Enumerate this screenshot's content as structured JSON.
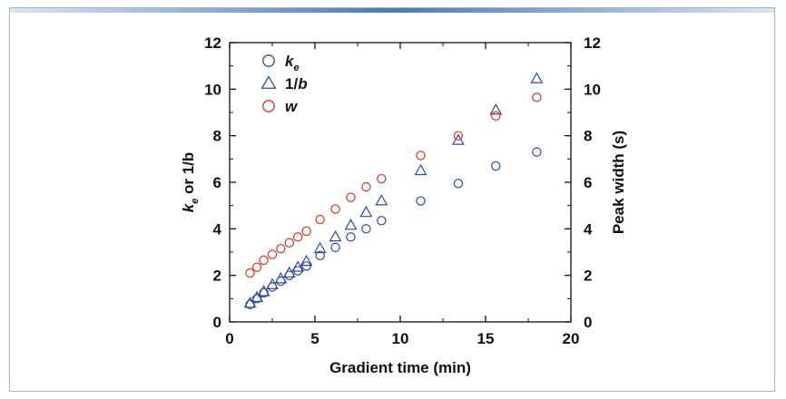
{
  "chart_data": {
    "type": "scatter",
    "xlabel": "Gradient time (min)",
    "ylabel_left": {
      "base": "k",
      "subscript": "e",
      "rest": " or 1/b"
    },
    "ylabel_right": "Peak width (s)",
    "xlim": [
      0,
      20
    ],
    "ylim_left": [
      0,
      12
    ],
    "ylim_right": [
      0,
      12
    ],
    "xticks": [
      0,
      5,
      10,
      15,
      20
    ],
    "yticks": [
      0,
      2,
      4,
      6,
      8,
      10,
      12
    ],
    "grid": false,
    "legend_position": "top-left",
    "series": [
      {
        "name": "k",
        "name_subscript": "e",
        "marker": "circle",
        "color": "#2f4a9a",
        "points": [
          [
            1.2,
            0.75
          ],
          [
            1.6,
            1.0
          ],
          [
            2.0,
            1.25
          ],
          [
            2.5,
            1.5
          ],
          [
            3.0,
            1.75
          ],
          [
            3.5,
            2.0
          ],
          [
            4.0,
            2.2
          ],
          [
            4.5,
            2.4
          ],
          [
            5.3,
            2.85
          ],
          [
            6.2,
            3.2
          ],
          [
            7.1,
            3.65
          ],
          [
            8.0,
            4.0
          ],
          [
            8.9,
            4.35
          ],
          [
            11.2,
            5.2
          ],
          [
            13.4,
            5.95
          ],
          [
            15.6,
            6.7
          ],
          [
            18.0,
            7.3
          ]
        ]
      },
      {
        "name": "1/b",
        "marker": "triangle",
        "color": "#2f4a9a",
        "points": [
          [
            1.2,
            0.8
          ],
          [
            1.6,
            1.05
          ],
          [
            2.0,
            1.3
          ],
          [
            2.5,
            1.6
          ],
          [
            3.0,
            1.85
          ],
          [
            3.5,
            2.1
          ],
          [
            4.0,
            2.35
          ],
          [
            4.5,
            2.6
          ],
          [
            5.3,
            3.15
          ],
          [
            6.2,
            3.65
          ],
          [
            7.1,
            4.15
          ],
          [
            8.0,
            4.7
          ],
          [
            8.9,
            5.2
          ],
          [
            11.2,
            6.5
          ],
          [
            13.4,
            7.8
          ],
          [
            15.6,
            9.1
          ],
          [
            18.0,
            10.45
          ]
        ]
      },
      {
        "name": "w",
        "marker": "circle",
        "color": "#d9342b",
        "points": [
          [
            1.2,
            2.1
          ],
          [
            1.6,
            2.35
          ],
          [
            2.0,
            2.65
          ],
          [
            2.5,
            2.9
          ],
          [
            3.0,
            3.15
          ],
          [
            3.5,
            3.4
          ],
          [
            4.0,
            3.65
          ],
          [
            4.5,
            3.9
          ],
          [
            5.3,
            4.4
          ],
          [
            6.2,
            4.85
          ],
          [
            7.1,
            5.35
          ],
          [
            8.0,
            5.8
          ],
          [
            8.9,
            6.15
          ],
          [
            11.2,
            7.15
          ],
          [
            13.4,
            8.0
          ],
          [
            15.6,
            8.85
          ],
          [
            18.0,
            9.65
          ]
        ]
      }
    ]
  }
}
